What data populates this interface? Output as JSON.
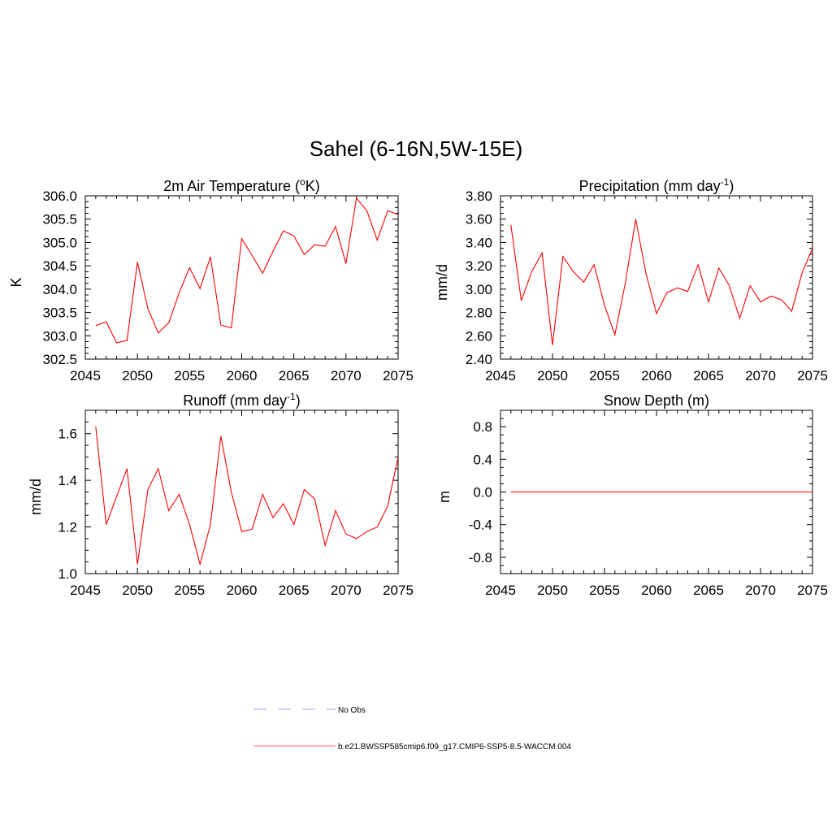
{
  "title": "Sahel (6-16N,5W-15E)",
  "chart_data": [
    {
      "type": "line",
      "title": "2m Air Temperature (",
      "title_sup": "o",
      "title_end": "K)",
      "ylabel": "K",
      "xlim": [
        2045,
        2075
      ],
      "ylim": [
        302.5,
        306.0
      ],
      "xticks": [
        2045,
        2050,
        2055,
        2060,
        2065,
        2070,
        2075
      ],
      "xtick_labels": [
        "2045",
        "2050",
        "2055",
        "2060",
        "2065",
        "2070",
        "2075"
      ],
      "yticks": [
        302.5,
        303.0,
        303.5,
        304.0,
        304.5,
        305.0,
        305.5,
        306.0
      ],
      "ytick_labels": [
        "302.5",
        "303.0",
        "303.5",
        "304.0",
        "304.5",
        "305.0",
        "305.5",
        "306.0"
      ],
      "x": [
        2046,
        2047,
        2048,
        2049,
        2050,
        2051,
        2052,
        2053,
        2054,
        2055,
        2056,
        2057,
        2058,
        2059,
        2060,
        2061,
        2062,
        2063,
        2064,
        2065,
        2066,
        2067,
        2068,
        2069,
        2070,
        2071,
        2072,
        2073,
        2074,
        2075
      ],
      "series": [
        {
          "color": "#ff0000",
          "values": [
            303.22,
            303.3,
            302.85,
            302.9,
            304.58,
            303.58,
            303.06,
            303.28,
            303.92,
            304.46,
            304.01,
            304.69,
            303.23,
            303.17,
            305.08,
            304.72,
            304.34,
            304.81,
            305.25,
            305.14,
            304.74,
            304.95,
            304.92,
            305.34,
            304.55,
            305.95,
            305.68,
            305.05,
            305.68,
            305.6
          ]
        }
      ]
    },
    {
      "type": "line",
      "title": "Precipitation (mm day",
      "title_sup": "-1",
      "title_end": ")",
      "ylabel": "mm/d",
      "xlim": [
        2045,
        2075
      ],
      "ylim": [
        2.4,
        3.8
      ],
      "xticks": [
        2045,
        2050,
        2055,
        2060,
        2065,
        2070,
        2075
      ],
      "xtick_labels": [
        "2045",
        "2050",
        "2055",
        "2060",
        "2065",
        "2070",
        "2075"
      ],
      "yticks": [
        2.4,
        2.6,
        2.8,
        3.0,
        3.2,
        3.4,
        3.6,
        3.8
      ],
      "ytick_labels": [
        "2.40",
        "2.60",
        "2.80",
        "3.00",
        "3.20",
        "3.40",
        "3.60",
        "3.80"
      ],
      "x": [
        2046,
        2047,
        2048,
        2049,
        2050,
        2051,
        2052,
        2053,
        2054,
        2055,
        2056,
        2057,
        2058,
        2059,
        2060,
        2061,
        2062,
        2063,
        2064,
        2065,
        2066,
        2067,
        2068,
        2069,
        2070,
        2071,
        2072,
        2073,
        2074,
        2075
      ],
      "series": [
        {
          "color": "#ff0000",
          "values": [
            3.55,
            2.9,
            3.15,
            3.31,
            2.52,
            3.28,
            3.15,
            3.06,
            3.21,
            2.86,
            2.61,
            3.05,
            3.6,
            3.13,
            2.79,
            2.97,
            3.01,
            2.98,
            3.21,
            2.89,
            3.18,
            3.03,
            2.75,
            3.03,
            2.89,
            2.94,
            2.91,
            2.81,
            3.14,
            3.35
          ]
        }
      ]
    },
    {
      "type": "line",
      "title": "Runoff (mm day",
      "title_sup": "-1",
      "title_end": ")",
      "ylabel": "mm/d",
      "xlim": [
        2045,
        2075
      ],
      "ylim": [
        1.0,
        1.7
      ],
      "xticks": [
        2045,
        2050,
        2055,
        2060,
        2065,
        2070,
        2075
      ],
      "xtick_labels": [
        "2045",
        "2050",
        "2055",
        "2060",
        "2065",
        "2070",
        "2075"
      ],
      "yticks": [
        1.0,
        1.2,
        1.4,
        1.6
      ],
      "ytick_labels": [
        "1.0",
        "1.2",
        "1.4",
        "1.6"
      ],
      "x": [
        2046,
        2047,
        2048,
        2049,
        2050,
        2051,
        2052,
        2053,
        2054,
        2055,
        2056,
        2057,
        2058,
        2059,
        2060,
        2061,
        2062,
        2063,
        2064,
        2065,
        2066,
        2067,
        2068,
        2069,
        2070,
        2071,
        2072,
        2073,
        2074,
        2075
      ],
      "series": [
        {
          "color": "#ff0000",
          "values": [
            1.63,
            1.21,
            1.33,
            1.45,
            1.04,
            1.36,
            1.45,
            1.27,
            1.34,
            1.21,
            1.04,
            1.21,
            1.59,
            1.35,
            1.18,
            1.19,
            1.34,
            1.24,
            1.3,
            1.21,
            1.36,
            1.32,
            1.12,
            1.27,
            1.17,
            1.15,
            1.18,
            1.2,
            1.29,
            1.5
          ]
        }
      ]
    },
    {
      "type": "line",
      "title": "Snow Depth (m)",
      "title_sup": "",
      "title_end": "",
      "ylabel": "m",
      "xlim": [
        2045,
        2075
      ],
      "ylim": [
        -1.0,
        1.0
      ],
      "xticks": [
        2045,
        2050,
        2055,
        2060,
        2065,
        2070,
        2075
      ],
      "xtick_labels": [
        "2045",
        "2050",
        "2055",
        "2060",
        "2065",
        "2070",
        "2075"
      ],
      "yticks": [
        -0.8,
        -0.4,
        0.0,
        0.4,
        0.8
      ],
      "ytick_labels": [
        "-0.8",
        "-0.4",
        "0.0",
        "0.4",
        "0.8"
      ],
      "x": [
        2046,
        2047,
        2048,
        2049,
        2050,
        2051,
        2052,
        2053,
        2054,
        2055,
        2056,
        2057,
        2058,
        2059,
        2060,
        2061,
        2062,
        2063,
        2064,
        2065,
        2066,
        2067,
        2068,
        2069,
        2070,
        2071,
        2072,
        2073,
        2074,
        2075
      ],
      "series": [
        {
          "color": "#ff0000",
          "values": [
            0,
            0,
            0,
            0,
            0,
            0,
            0,
            0,
            0,
            0,
            0,
            0,
            0,
            0,
            0,
            0,
            0,
            0,
            0,
            0,
            0,
            0,
            0,
            0,
            0,
            0,
            0,
            0,
            0,
            0
          ]
        }
      ]
    }
  ],
  "legend": [
    {
      "label": "No Obs",
      "color": "#aaaaee",
      "dash": true
    },
    {
      "label": "b.e21.BWSSP585cmip6.f09_g17.CMIP6-SSP5-8.5-WACCM.004",
      "color": "#ff8888",
      "dash": false
    }
  ]
}
